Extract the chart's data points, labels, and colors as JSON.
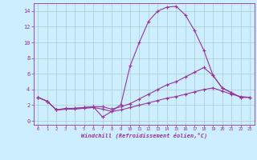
{
  "xlabel": "Windchill (Refroidissement éolien,°C)",
  "bg_color": "#cceeff",
  "grid_color": "#aacccc",
  "line_color": "#993399",
  "xlim": [
    -0.5,
    23.5
  ],
  "ylim": [
    -0.5,
    15.0
  ],
  "xticks": [
    0,
    1,
    2,
    3,
    4,
    5,
    6,
    7,
    8,
    9,
    10,
    11,
    12,
    13,
    14,
    15,
    16,
    17,
    18,
    19,
    20,
    21,
    22,
    23
  ],
  "yticks": [
    0,
    2,
    4,
    6,
    8,
    10,
    12,
    14
  ],
  "line1_x": [
    0,
    1,
    2,
    3,
    4,
    5,
    6,
    7,
    8,
    9,
    10,
    11,
    12,
    13,
    14,
    15,
    16,
    17,
    18,
    19,
    20,
    21,
    22,
    23
  ],
  "line1_y": [
    3.0,
    2.5,
    1.4,
    1.6,
    1.6,
    1.7,
    1.8,
    0.5,
    1.2,
    2.1,
    7.0,
    10.0,
    12.7,
    14.0,
    14.5,
    14.6,
    13.5,
    11.5,
    9.0,
    5.8,
    4.2,
    3.6,
    3.0,
    3.0
  ],
  "line2_x": [
    0,
    1,
    2,
    3,
    4,
    5,
    6,
    7,
    8,
    9,
    10,
    11,
    12,
    13,
    14,
    15,
    16,
    17,
    18,
    19,
    20,
    21,
    22,
    23
  ],
  "line2_y": [
    3.0,
    2.5,
    1.4,
    1.5,
    1.6,
    1.7,
    1.8,
    1.8,
    1.5,
    1.8,
    2.2,
    2.8,
    3.4,
    4.0,
    4.6,
    5.0,
    5.6,
    6.2,
    6.8,
    5.8,
    4.2,
    3.6,
    3.0,
    3.0
  ],
  "line3_x": [
    0,
    1,
    2,
    3,
    4,
    5,
    6,
    7,
    8,
    9,
    10,
    11,
    12,
    13,
    14,
    15,
    16,
    17,
    18,
    19,
    20,
    21,
    22,
    23
  ],
  "line3_y": [
    3.0,
    2.5,
    1.4,
    1.5,
    1.5,
    1.6,
    1.7,
    1.5,
    1.2,
    1.4,
    1.7,
    2.0,
    2.3,
    2.6,
    2.9,
    3.1,
    3.4,
    3.7,
    4.0,
    4.2,
    3.8,
    3.4,
    3.1,
    3.0
  ]
}
